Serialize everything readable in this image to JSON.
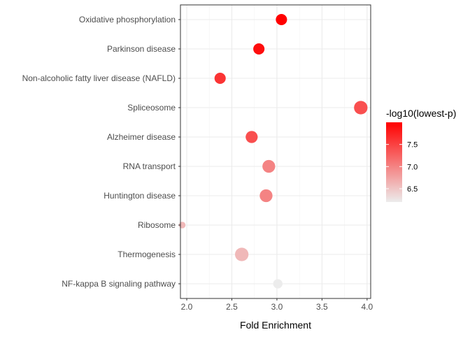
{
  "chart_data": {
    "type": "scatter",
    "xlabel": "Fold Enrichment",
    "ylabel": "",
    "xlim": [
      1.93,
      4.04
    ],
    "x_ticks": [
      "2.0",
      "2.5",
      "3.0",
      "3.5",
      "4.0"
    ],
    "grid": true,
    "categories": [
      "Oxidative phosphorylation",
      "Parkinson disease",
      "Non-alcoholic fatty liver disease (NAFLD)",
      "Spliceosome",
      "Alzheimer disease",
      "RNA transport",
      "Huntington disease",
      "Ribosome",
      "Thermogenesis",
      "NF-kappa B signaling pathway"
    ],
    "points": [
      {
        "term": "Oxidative phosphorylation",
        "fold_enrichment": 3.05,
        "neg_log10_p": 8.0,
        "count": 5
      },
      {
        "term": "Parkinson disease",
        "fold_enrichment": 2.8,
        "neg_log10_p": 7.9,
        "count": 5
      },
      {
        "term": "Non-alcoholic fatty liver disease (NAFLD)",
        "fold_enrichment": 2.37,
        "neg_log10_p": 7.6,
        "count": 5
      },
      {
        "term": "Spliceosome",
        "fold_enrichment": 3.93,
        "neg_log10_p": 7.4,
        "count": 8
      },
      {
        "term": "Alzheimer disease",
        "fold_enrichment": 2.72,
        "neg_log10_p": 7.4,
        "count": 6
      },
      {
        "term": "RNA transport",
        "fold_enrichment": 2.91,
        "neg_log10_p": 7.0,
        "count": 7
      },
      {
        "term": "Huntington disease",
        "fold_enrichment": 2.88,
        "neg_log10_p": 7.0,
        "count": 7
      },
      {
        "term": "Ribosome",
        "fold_enrichment": 1.95,
        "neg_log10_p": 6.6,
        "count": 1
      },
      {
        "term": "Thermogenesis",
        "fold_enrichment": 2.61,
        "neg_log10_p": 6.6,
        "count": 8
      },
      {
        "term": "NF-kappa B signaling pathway",
        "fold_enrichment": 3.01,
        "neg_log10_p": 6.2,
        "count": 3
      }
    ],
    "color_legend": {
      "title": "-log10(lowest-p)",
      "ticks": [
        "6.5",
        "7.0",
        "7.5"
      ],
      "tick_values": [
        6.5,
        7.0,
        7.5
      ],
      "range": [
        6.2,
        8.0
      ],
      "low_color": "#ececec",
      "high_color": "#ff0000"
    }
  }
}
